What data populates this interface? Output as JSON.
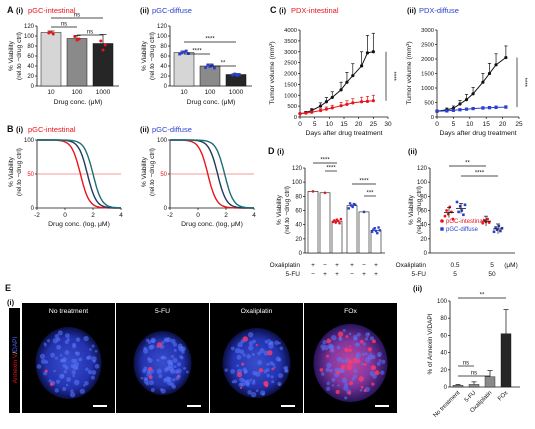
{
  "figure": {
    "A": {
      "letter": "A",
      "i": {
        "roman": "(i)",
        "title": "pGC-intestinal",
        "xlabel": "Drug conc. (μM)",
        "ylabel1": "% Viability",
        "ylabel2": "(rel.to −drug ctrl)",
        "sig": [
          "ns",
          "ns",
          "ns"
        ]
      },
      "ii": {
        "roman": "(ii)",
        "title": "pGC-diffuse",
        "xlabel": "Drug conc. (μM)",
        "ylabel1": "% Viability",
        "ylabel2": "(rel.to −drug ctrl)",
        "sig": [
          "****",
          "****",
          "**"
        ]
      }
    },
    "B": {
      "letter": "B",
      "i": {
        "roman": "(i)",
        "title": "pGC-intestinal",
        "xlabel": "Drug conc. (log, μM)",
        "ylabel1": "% Viability",
        "ylabel2": "(rel.to −drug ctrl)",
        "ref_label": "50"
      },
      "ii": {
        "roman": "(ii)",
        "title": "pGC-diffuse",
        "xlabel": "Drug conc. (log, μM)",
        "ylabel1": "% Viability",
        "ylabel2": "(rel.to −drug ctrl)",
        "ref_label": "50"
      }
    },
    "C": {
      "letter": "C",
      "i": {
        "roman": "(i)",
        "title": "PDX-intestinal",
        "xlabel": "Days after drug treatment",
        "ylabel": "Tumor volume (mm³)",
        "sig": "****"
      },
      "ii": {
        "roman": "(ii)",
        "title": "PDX-diffuse",
        "xlabel": "Days after drug treatment",
        "ylabel": "Tumor volume (mm³)",
        "sig": "****"
      }
    },
    "D": {
      "letter": "D",
      "i": {
        "roman": "(i)",
        "ylabel1": "% Viability",
        "ylabel2": "(rel.to −drug ctrl)",
        "row1_label": "Oxaliplatin",
        "row2_label": "5-FU",
        "row1": [
          "+",
          "−",
          "+",
          "+",
          "−",
          "+"
        ],
        "row2": [
          "−",
          "+",
          "+",
          "−",
          "+",
          "+"
        ],
        "sig": [
          "****",
          "****",
          "****",
          "***"
        ]
      },
      "ii": {
        "roman": "(ii)",
        "ylabel1": "% Viability",
        "ylabel2": "(rel.to −drug ctrl)",
        "row1_label": "Oxaliplatin",
        "row2_label": "5-FU",
        "row1": [
          "0.5",
          "5"
        ],
        "row2": [
          "5",
          "50"
        ],
        "unit": "(μM)",
        "sig": [
          "**",
          "****"
        ],
        "legend": [
          "pGC-intestinal",
          "pGC-diffuse"
        ]
      }
    },
    "E": {
      "letter": "E",
      "i": {
        "roman": "(i)",
        "side_label1": "Annexin V",
        "side_label2": "DAPI",
        "side_sep": "/",
        "panels": [
          "No treatment",
          "5-FU",
          "Oxaliplatin",
          "FOx"
        ]
      },
      "ii": {
        "roman": "(ii)",
        "ylabel": "% of Annexin V/DAPI",
        "sig": [
          "ns",
          "ns",
          "**"
        ]
      }
    }
  },
  "colors": {
    "intestinal": "#e8141c",
    "diffuse": "#2b3fcf",
    "navy": "#1f3a5f",
    "teal": "#1c6e73",
    "bar_light": "#d6d6d6",
    "bar_mid": "#8a8a8a",
    "bar_dark": "#262626",
    "red_line": "#f07a7a"
  },
  "chart_data": [
    {
      "id": "A(i)",
      "type": "bar",
      "categories": [
        "10",
        "100",
        "1000"
      ],
      "values": [
        107,
        95,
        85
      ],
      "errors": [
        3,
        6,
        18
      ],
      "points": [
        [
          106,
          108,
          104
        ],
        [
          99,
          92,
          94
        ],
        [
          90,
          72,
          82
        ]
      ],
      "xlabel": "Drug conc. (μM)",
      "ylabel": "% Viability (rel.to −drug ctrl)",
      "ylim": [
        0,
        120
      ],
      "yticks": [
        0,
        20,
        40,
        60,
        80,
        100,
        120
      ]
    },
    {
      "id": "A(ii)",
      "type": "bar",
      "categories": [
        "10",
        "100",
        "1000"
      ],
      "values": [
        67,
        40,
        23
      ],
      "errors": [
        3,
        4,
        2
      ],
      "points": [
        [
          64,
          66,
          68,
          70,
          65
        ],
        [
          37,
          42,
          39,
          41,
          36
        ],
        [
          22,
          24,
          21,
          23
        ]
      ],
      "xlabel": "Drug conc. (μM)",
      "ylabel": "% Viability (rel.to −drug ctrl)",
      "ylim": [
        0,
        120
      ],
      "yticks": [
        0,
        20,
        40,
        60,
        80,
        100,
        120
      ]
    },
    {
      "id": "B(i)",
      "type": "line",
      "xlabel": "Drug conc. (log, μM)",
      "ylabel": "% Viability (rel.to −drug ctrl)",
      "xlim": [
        -2,
        4
      ],
      "ylim": [
        0,
        100
      ],
      "xticks": [
        -2,
        0,
        2,
        4
      ],
      "yticks": [
        0,
        50,
        100
      ],
      "reference_y": 50,
      "series": [
        {
          "color": "#e8141c",
          "logIC50": 1.1,
          "hill": 1.4
        },
        {
          "color": "#1f3a5f",
          "logIC50": 1.6,
          "hill": 1.4
        },
        {
          "color": "#1c6e73",
          "logIC50": 2.0,
          "hill": 1.4
        }
      ]
    },
    {
      "id": "B(ii)",
      "type": "line",
      "xlabel": "Drug conc. (log, μM)",
      "ylabel": "% Viability (rel.to −drug ctrl)",
      "xlim": [
        -2,
        4
      ],
      "ylim": [
        0,
        100
      ],
      "xticks": [
        -2,
        0,
        2,
        4
      ],
      "yticks": [
        0,
        50,
        100
      ],
      "reference_y": 50,
      "series": [
        {
          "color": "#e8141c",
          "logIC50": 0.7,
          "hill": 1.4
        },
        {
          "color": "#1f3a5f",
          "logIC50": 1.4,
          "hill": 1.4
        },
        {
          "color": "#1c6e73",
          "logIC50": 1.9,
          "hill": 1.4
        }
      ]
    },
    {
      "id": "C(i)",
      "type": "line",
      "xlabel": "Days after drug treatment",
      "ylabel": "Tumor volume (mm³)",
      "xlim": [
        0,
        30
      ],
      "ylim": [
        0,
        4000
      ],
      "xticks": [
        0,
        5,
        10,
        15,
        20,
        25,
        30
      ],
      "yticks": [
        0,
        500,
        1000,
        1500,
        2000,
        2500,
        3000,
        3500,
        4000
      ],
      "series": [
        {
          "color": "#111111",
          "marker": "circle",
          "x": [
            0,
            2,
            4,
            7,
            9,
            11,
            14,
            16,
            18,
            21,
            23,
            25
          ],
          "y": [
            150,
            200,
            300,
            500,
            700,
            900,
            1250,
            1600,
            1900,
            2350,
            2950,
            3000
          ],
          "err": [
            40,
            60,
            90,
            150,
            200,
            260,
            350,
            450,
            550,
            650,
            800,
            850
          ]
        },
        {
          "color": "#e8141c",
          "marker": "circle",
          "x": [
            0,
            2,
            4,
            7,
            9,
            11,
            14,
            16,
            18,
            21,
            23,
            25
          ],
          "y": [
            150,
            180,
            220,
            300,
            360,
            420,
            520,
            580,
            650,
            700,
            720,
            750
          ],
          "err": [
            30,
            40,
            60,
            80,
            100,
            120,
            150,
            170,
            190,
            210,
            230,
            250
          ]
        }
      ]
    },
    {
      "id": "C(ii)",
      "type": "line",
      "xlabel": "Days after drug treatment",
      "ylabel": "Tumor volume (mm³)",
      "xlim": [
        0,
        25
      ],
      "ylim": [
        0,
        3000
      ],
      "xticks": [
        0,
        5,
        10,
        15,
        20,
        25
      ],
      "yticks": [
        0,
        500,
        1000,
        1500,
        2000,
        2500,
        3000
      ],
      "series": [
        {
          "color": "#111111",
          "marker": "circle",
          "x": [
            0,
            3,
            5,
            7,
            9,
            11,
            14,
            16,
            18,
            21
          ],
          "y": [
            200,
            250,
            300,
            450,
            600,
            800,
            1200,
            1500,
            1800,
            2050
          ],
          "err": [
            40,
            60,
            80,
            120,
            180,
            220,
            300,
            350,
            380,
            400
          ]
        },
        {
          "color": "#2b3fcf",
          "marker": "square",
          "x": [
            0,
            3,
            5,
            7,
            9,
            11,
            14,
            16,
            18,
            21
          ],
          "y": [
            200,
            210,
            230,
            250,
            270,
            290,
            310,
            320,
            330,
            340
          ],
          "err": [
            30,
            30,
            35,
            35,
            40,
            40,
            45,
            45,
            50,
            50
          ]
        }
      ]
    },
    {
      "id": "D(i)",
      "type": "bar",
      "ylabel": "% Viability (rel.to −drug ctrl)",
      "ylim": [
        0,
        120
      ],
      "yticks": [
        0,
        20,
        40,
        60,
        80,
        100,
        120
      ],
      "series": [
        {
          "name": "pGC-intestinal",
          "values": [
            87,
            85,
            45
          ],
          "points": [
            [
              87
            ],
            [
              85
            ],
            [
              44,
              46,
              43,
              47,
              45,
              42,
              48
            ]
          ]
        },
        {
          "name": "pGC-diffuse",
          "values": [
            67,
            58,
            32
          ],
          "points": [
            [
              63,
              70,
              67,
              65,
              69,
              68
            ],
            [
              58
            ],
            [
              30,
              33,
              35,
              31,
              28,
              36,
              32
            ]
          ]
        }
      ]
    },
    {
      "id": "D(ii)",
      "type": "scatter",
      "ylabel": "% Viability (rel.to −drug ctrl)",
      "ylim": [
        0,
        120
      ],
      "yticks": [
        0,
        20,
        40,
        60,
        80,
        100,
        120
      ],
      "categories": [
        "0.5 / 5",
        "5 / 50"
      ],
      "series": [
        {
          "name": "pGC-intestinal",
          "values": [
            57,
            45
          ],
          "points": [
            [
              52,
              60,
              55,
              65,
              58,
              48
            ],
            [
              42,
              46,
              44,
              48,
              43
            ]
          ]
        },
        {
          "name": "pGC-diffuse",
          "values": [
            63,
            34
          ],
          "points": [
            [
              72,
              58,
              66,
              60,
              54,
              68
            ],
            [
              30,
              36,
              33,
              38,
              31,
              35
            ]
          ]
        }
      ]
    },
    {
      "id": "E(ii)",
      "type": "bar",
      "categories": [
        "No treatment",
        "5-FU",
        "Oxaliplatin",
        "FOx"
      ],
      "values": [
        2,
        3,
        12,
        62
      ],
      "errors": [
        1,
        3,
        7,
        28
      ],
      "ylabel": "% of Annexin V/DAPI",
      "ylim": [
        0,
        100
      ],
      "yticks": [
        0,
        20,
        40,
        60,
        80,
        100
      ]
    }
  ]
}
